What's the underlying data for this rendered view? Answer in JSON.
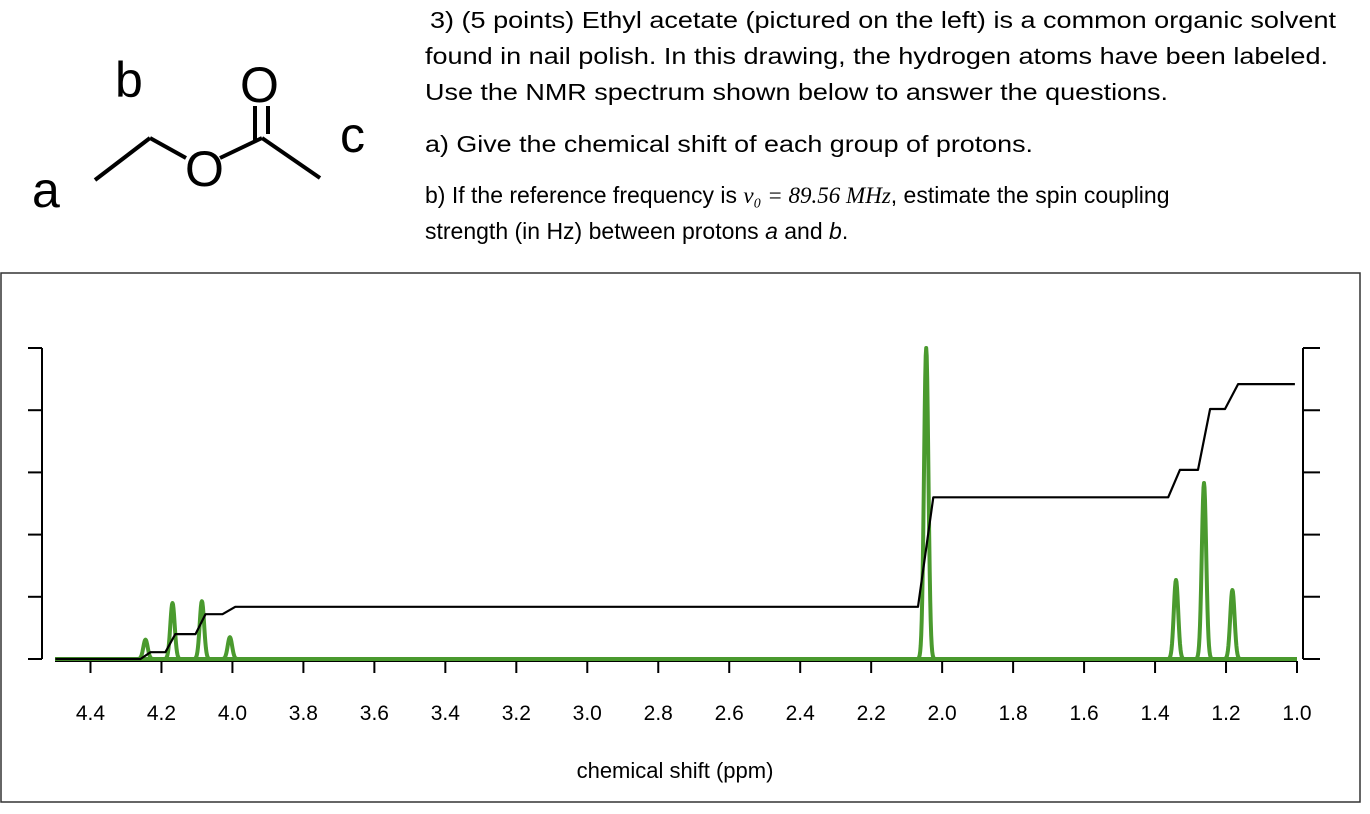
{
  "molecule": {
    "labels": [
      "a",
      "b",
      "c"
    ],
    "atoms": [
      "O",
      "O"
    ]
  },
  "question": {
    "intro": [
      "3) (5 points) Ethyl acetate (pictured on the left) is a common organic solvent",
      "found in nail polish. In this drawing, the hydrogen atoms have been labeled.",
      "Use the NMR spectrum shown below to answer the questions."
    ],
    "part_a": "a) Give the chemical shift of each group of protons.",
    "part_b": {
      "before": "b) If the reference frequency is",
      "frequency": "ν₀ = 89.56 MHz",
      "after": ", estimate the spin coupling",
      "line2": "strength (in Hz) between protons",
      "proton_a": "a",
      "and": "and",
      "proton_b": "b",
      "end": "."
    }
  },
  "chart_data": {
    "type": "line",
    "xlabel": "chemical shift (ppm)",
    "xlim": [
      4.5,
      1.0
    ],
    "xticks": [
      4.4,
      4.2,
      {
        "value": 4.0,
        "label": "4.0"
      },
      3.8,
      3.6,
      3.4,
      3.2,
      {
        "value": 3.0,
        "label": "3.0"
      },
      2.8,
      2.6,
      2.4,
      2.2,
      {
        "value": 2.0,
        "label": "2.0"
      },
      1.8,
      1.6,
      1.4,
      1.2,
      {
        "value": 1.0,
        "label": "1.0"
      }
    ],
    "ylim": [
      0,
      5
    ],
    "yticks": [
      0,
      1,
      2,
      3,
      4,
      5
    ],
    "series": [
      {
        "style": "peaks",
        "color": "#4a9a2e",
        "x": [
          4.245,
          4.169,
          4.086,
          4.007,
          2.045,
          1.341,
          1.262,
          1.182
        ],
        "values": [
          0.31,
          0.9,
          0.93,
          0.35,
          5.0,
          1.27,
          2.83,
          1.11
        ]
      },
      {
        "style": "line",
        "color": "#000000",
        "x": [
          4.499,
          4.259,
          4.231,
          4.189,
          4.161,
          4.104,
          4.076,
          4.028,
          3.992,
          2.068,
          2.025,
          1.363,
          1.33,
          1.279,
          1.245,
          1.203,
          1.166,
          1.006
        ],
        "values": [
          0,
          0,
          0.11,
          0.11,
          0.4,
          0.4,
          0.72,
          0.72,
          0.84,
          0.84,
          2.6,
          2.6,
          3.04,
          3.04,
          4.02,
          4.02,
          4.42,
          4.42
        ]
      }
    ]
  }
}
